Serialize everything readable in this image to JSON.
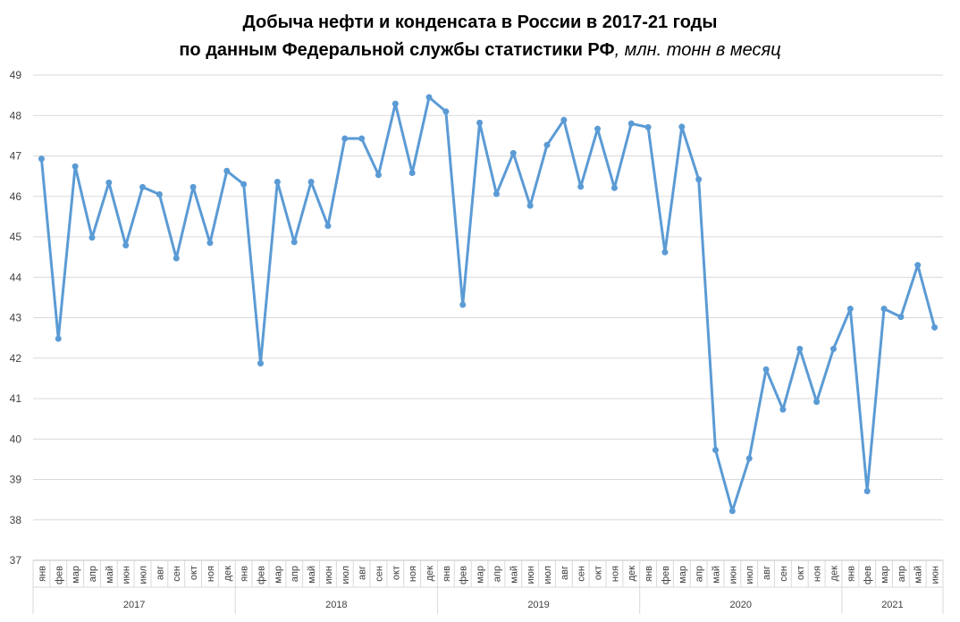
{
  "chart_data": {
    "type": "line",
    "title_line1": "Добыча нефти и конденсата в России в 2017-21 годы",
    "title_line2": "по данным Федеральной службы статистики РФ",
    "title_unit": ", млн. тонн в месяц",
    "ylim": [
      37,
      49
    ],
    "yticks": [
      37,
      38,
      39,
      40,
      41,
      42,
      43,
      44,
      45,
      46,
      47,
      48,
      49
    ],
    "grid": true,
    "color": "#5B9BD5",
    "categories": [
      "янв",
      "фев",
      "мар",
      "апр",
      "май",
      "июн",
      "июл",
      "авг",
      "сен",
      "окт",
      "ноя",
      "дек",
      "янв",
      "фев",
      "мар",
      "апр",
      "май",
      "июн",
      "июл",
      "авг",
      "сен",
      "окт",
      "ноя",
      "дек",
      "янв",
      "фев",
      "мар",
      "апр",
      "май",
      "июн",
      "июл",
      "авг",
      "сен",
      "окт",
      "ноя",
      "дек",
      "янв",
      "фев",
      "мар",
      "апр",
      "май",
      "июн",
      "июл",
      "авг",
      "сен",
      "окт",
      "ноя",
      "дек",
      "янв",
      "фев",
      "мар",
      "апр",
      "май",
      "июн"
    ],
    "years": [
      {
        "label": "2017",
        "months": 12
      },
      {
        "label": "2018",
        "months": 12
      },
      {
        "label": "2019",
        "months": 12
      },
      {
        "label": "2020",
        "months": 12
      },
      {
        "label": "2021",
        "months": 6
      }
    ],
    "values": [
      46.93,
      42.48,
      46.74,
      44.98,
      46.34,
      44.79,
      46.23,
      46.05,
      44.47,
      46.23,
      44.85,
      46.63,
      46.3,
      41.87,
      46.36,
      44.87,
      46.36,
      45.27,
      47.43,
      47.43,
      46.53,
      48.29,
      46.58,
      48.45,
      48.1,
      43.32,
      47.82,
      46.06,
      47.07,
      45.77,
      47.27,
      47.89,
      46.24,
      47.67,
      46.21,
      47.8,
      47.71,
      44.62,
      47.72,
      46.42,
      39.73,
      38.22,
      39.52,
      41.72,
      40.73,
      42.23,
      40.92,
      42.23,
      43.22,
      38.71,
      43.22,
      43.02,
      44.3,
      42.76
    ]
  }
}
